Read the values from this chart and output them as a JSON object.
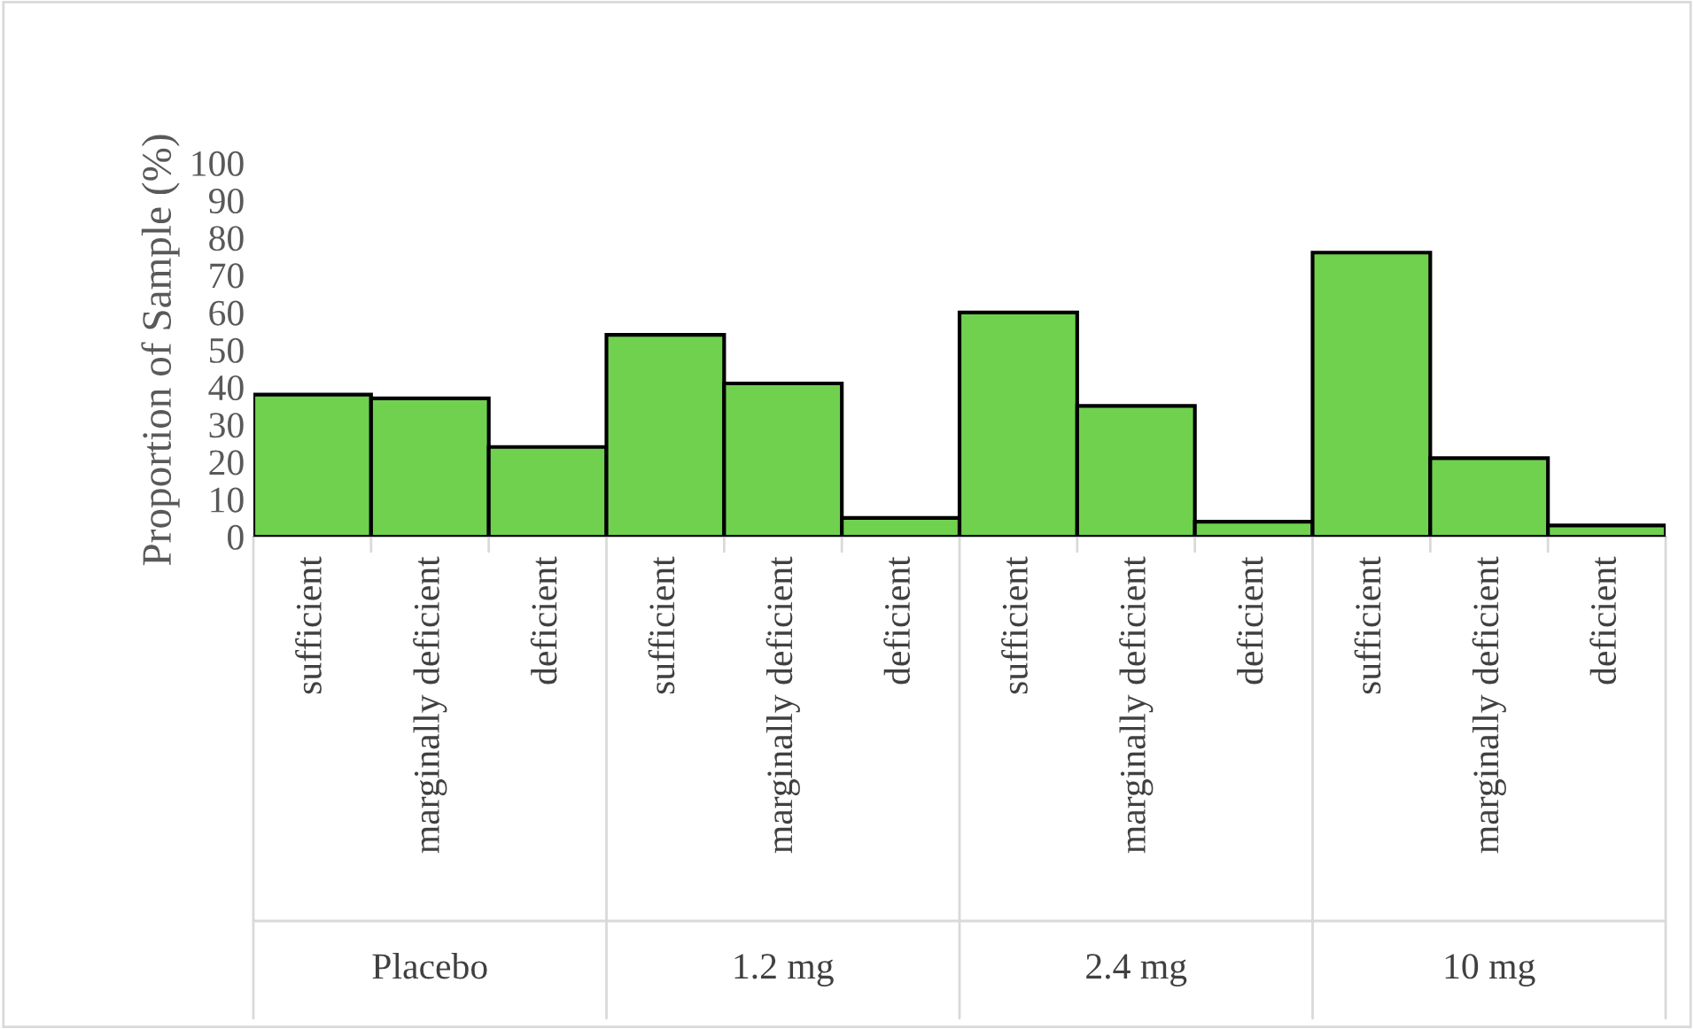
{
  "chart_data": {
    "type": "bar",
    "ylabel": "Proportion of Sample (%)",
    "categories": [
      "sufficient",
      "marginally deficient",
      "deficient",
      "sufficient",
      "marginally deficient",
      "deficient",
      "sufficient",
      "marginally deficient",
      "deficient",
      "sufficient",
      "marginally deficient",
      "deficient"
    ],
    "values": [
      38,
      37,
      24,
      54,
      41,
      5,
      60,
      35,
      4,
      76,
      21,
      3
    ],
    "color": "#70d14f",
    "annotations": [
      "Placebo",
      "1.2 mg",
      "2.4 mg",
      "10 mg"
    ],
    "ylim": [
      0,
      100
    ],
    "yticks": [
      0,
      10,
      20,
      30,
      40,
      50,
      60,
      70,
      80,
      90,
      100
    ],
    "grid": false
  }
}
